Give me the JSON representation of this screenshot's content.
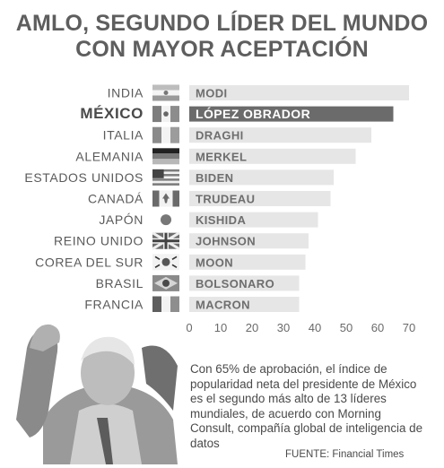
{
  "title": {
    "line1": "AMLO, SEGUNDO LÍDER DEL MUNDO",
    "line2": "CON MAYOR ACEPTACIÓN"
  },
  "chart_data": {
    "type": "bar",
    "orientation": "horizontal",
    "categories": [
      "INDIA",
      "MÉXICO",
      "ITALIA",
      "ALEMANIA",
      "ESTADOS UNIDOS",
      "CANADÁ",
      "JAPÓN",
      "REINO UNIDO",
      "COREA DEL SUR",
      "BRASIL",
      "FRANCIA"
    ],
    "leaders": [
      "MODI",
      "LÓPEZ OBRADOR",
      "DRAGHI",
      "MERKEL",
      "BIDEN",
      "TRUDEAU",
      "KISHIDA",
      "JOHNSON",
      "MOON",
      "BOLSONARO",
      "MACRON"
    ],
    "values": [
      70,
      65,
      58,
      53,
      46,
      45,
      41,
      38,
      37,
      35,
      35
    ],
    "highlight_index": 1,
    "xlim": [
      0,
      70
    ],
    "xticks": [
      0,
      10,
      20,
      30,
      40,
      50,
      60,
      70
    ],
    "grid": false,
    "colors": {
      "bar": "#e6e6e6",
      "highlight_bar": "#6b6b6b",
      "text": "#5a5a5a"
    }
  },
  "flags": [
    "india-flag-icon",
    "mexico-flag-icon",
    "italy-flag-icon",
    "germany-flag-icon",
    "usa-flag-icon",
    "canada-flag-icon",
    "japan-flag-icon",
    "uk-flag-icon",
    "south-korea-flag-icon",
    "brazil-flag-icon",
    "france-flag-icon"
  ],
  "caption": "Con 65% de aprobación, el índice de popularidad neta del presidente de México es el segundo más alto de 13 líderes mundiales, de acuerdo con Morning Consult, compañía global de inteligencia de datos",
  "source": {
    "label": "FUENTE:",
    "value": "Financial Times"
  }
}
